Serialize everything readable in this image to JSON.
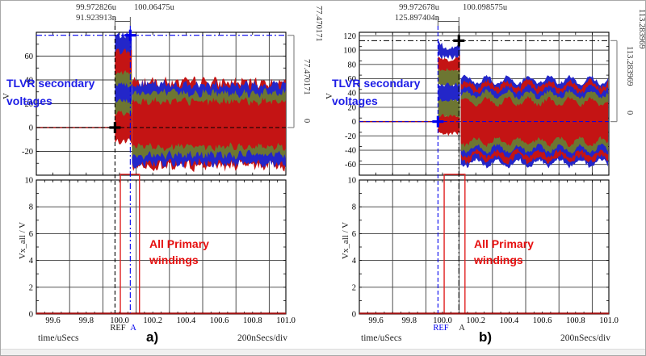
{
  "panels": [
    {
      "caption": "a)",
      "header": {
        "t_ref": "99.972826u",
        "t_a": "100.06475u",
        "dt": "91.923913n"
      },
      "top": {
        "ylabel": "V",
        "note_line1": "TLVR secondary",
        "note_line2": "voltages",
        "bracket_top": "77.470171",
        "bracket_delta": "77.470171",
        "bracket_zero": "0"
      },
      "bottom": {
        "ylabel": "Vx_all / V",
        "note_line1": "All Primary",
        "note_line2": "windings",
        "ref_label": "REF",
        "a_label": "A"
      },
      "footer": {
        "xlabel": "time/uSecs",
        "scale": "200nSecs/div"
      }
    },
    {
      "caption": "b)",
      "header": {
        "t_ref": "99.972678u",
        "t_a": "100.098575u",
        "dt": "125.897404n"
      },
      "top": {
        "ylabel": "V",
        "note_line1": "TLVR secondary",
        "note_line2": "voltages",
        "bracket_top": "113.283969",
        "bracket_delta": "113.283969",
        "bracket_zero": "0"
      },
      "bottom": {
        "ylabel": "Vx_all / V",
        "note_line1": "All Primary",
        "note_line2": "windings",
        "ref_label": "REF",
        "a_label": "A"
      },
      "footer": {
        "xlabel": "time/uSecs",
        "scale": "200nSecs/div"
      }
    }
  ],
  "colors": {
    "trace_red": "#c41414",
    "trace_olive": "#6d7632",
    "trace_blue": "#2326c9",
    "cursor_blue": "#0000ee",
    "cursor_black": "#000000",
    "note_blue": "#1c1ce6",
    "note_red": "#e60f0f",
    "box_red": "#e02222",
    "bracket_gray": "#8a8a8a",
    "grid": "#3c3c3c",
    "axis_trace_red": "#a01010"
  },
  "chart_data": [
    {
      "panel": "a",
      "pos": "top",
      "type": "area",
      "title": "TLVR secondary voltages",
      "xlabel": "time/uSecs",
      "ylabel": "V",
      "xlim": [
        99.5,
        101.0
      ],
      "ylim": [
        -40,
        80
      ],
      "yticks": [
        60,
        40,
        20,
        0,
        -20
      ],
      "xgrid_step": 0.2,
      "x_minor": 0.1,
      "y_minor": 10,
      "grid": true,
      "pre_level": 0,
      "burst": {
        "x0": 99.9728,
        "x1": 100.075,
        "stripes": [
          {
            "c": "blue",
            "y0": 58,
            "y1": 77.5,
            "jit": 3,
            "dip": 0
          },
          {
            "c": "red",
            "y0": 41,
            "y1": 64,
            "jit": 3,
            "dip": 0
          },
          {
            "c": "olive",
            "y0": 32,
            "y1": 46,
            "jit": 2.5,
            "dip": 0
          },
          {
            "c": "blue",
            "y0": 19,
            "y1": 36,
            "jit": 2.5,
            "dip": 0
          },
          {
            "c": "olive",
            "y0": 6,
            "y1": 22,
            "jit": 2.5,
            "dip": 0
          },
          {
            "c": "red",
            "y0": -12,
            "y1": 12,
            "jit": 3,
            "dip": 0
          }
        ]
      },
      "steady": {
        "x0": 100.075,
        "x1": 101.0,
        "center": 3,
        "ripple_period": 0.06,
        "ripple_amp": 1.5,
        "bands": [
          {
            "c": "red",
            "hw": 35,
            "jit": 4
          },
          {
            "c": "blue",
            "hw": 33,
            "jit": 3.5
          },
          {
            "c": "olive",
            "hw": 26,
            "jit": 3
          },
          {
            "c": "red",
            "hw": 19,
            "jit": 2.5
          }
        ]
      },
      "cursors": [
        {
          "name": "REF",
          "x": 99.972826,
          "y": 0,
          "color": "#000000",
          "dash": "5,3"
        },
        {
          "name": "A",
          "x": 100.06475,
          "y": 77.470171,
          "color": "#0000ee",
          "dash": "7,3,2,3"
        }
      ],
      "bracket": {
        "y_top": 77.470171,
        "y_bot": 0
      }
    },
    {
      "panel": "a",
      "pos": "bottom",
      "type": "line",
      "xlabel": "time/uSecs",
      "ylabel": "Vx_all / V",
      "xlim": [
        99.5,
        101.0
      ],
      "ylim": [
        0,
        10
      ],
      "yticks": [
        10,
        8,
        6,
        4,
        2,
        0
      ],
      "xticks": [
        "99.6",
        "99.8",
        "100.0",
        "100.2",
        "100.4",
        "100.6",
        "100.8",
        "101.0"
      ],
      "xgrid_step": 0.2,
      "x_minor": 0.05,
      "y_minor": 1,
      "trace_level": 0,
      "box": {
        "x0": 100.005,
        "x1": 100.12
      }
    },
    {
      "panel": "b",
      "pos": "top",
      "type": "area",
      "title": "TLVR secondary voltages",
      "xlabel": "time/uSecs",
      "ylabel": "V",
      "xlim": [
        99.5,
        101.0
      ],
      "ylim": [
        -75,
        125
      ],
      "yticks": [
        120,
        100,
        80,
        60,
        40,
        20,
        0,
        -20,
        -40,
        -60
      ],
      "xgrid_step": 0.2,
      "x_minor": 0.1,
      "y_minor": 20,
      "grid": true,
      "pre_level": 0,
      "burst": {
        "x0": 99.973,
        "x1": 100.11,
        "stripes": [
          {
            "c": "blue",
            "y0": 90,
            "y1": 113.5,
            "jit": 4,
            "dip": 12
          },
          {
            "c": "red",
            "y0": 70,
            "y1": 92,
            "jit": 3,
            "dip": 6
          },
          {
            "c": "olive",
            "y0": 50,
            "y1": 72,
            "jit": 3,
            "dip": 0
          },
          {
            "c": "blue",
            "y0": 28,
            "y1": 52,
            "jit": 3,
            "dip": 0
          },
          {
            "c": "olive",
            "y0": 5,
            "y1": 30,
            "jit": 3,
            "dip": 0
          },
          {
            "c": "red",
            "y0": -17,
            "y1": 8,
            "jit": 3,
            "dip": 0
          }
        ]
      },
      "steady": {
        "x0": 100.11,
        "x1": 101.0,
        "center": 0,
        "ripple_period": 0.125,
        "ripple_amp": 5,
        "bands": [
          {
            "c": "blue",
            "hw": 58,
            "jit": 3
          },
          {
            "c": "red",
            "hw": 52,
            "jit": 4
          },
          {
            "c": "blue",
            "hw": 45,
            "jit": 3
          },
          {
            "c": "olive",
            "hw": 38,
            "jit": 3
          },
          {
            "c": "red",
            "hw": 28,
            "jit": 3
          }
        ]
      },
      "cursors": [
        {
          "name": "REF",
          "x": 99.972678,
          "y": 0,
          "color": "#0000ee",
          "dash": "5,3"
        },
        {
          "name": "A",
          "x": 100.098575,
          "y": 113.283969,
          "color": "#000000",
          "dash": "7,3,2,3"
        }
      ],
      "bracket": {
        "y_top": 113.283969,
        "y_bot": 0
      }
    },
    {
      "panel": "b",
      "pos": "bottom",
      "type": "line",
      "xlabel": "time/uSecs",
      "ylabel": "Vx_all / V",
      "xlim": [
        99.5,
        101.0
      ],
      "ylim": [
        0,
        10
      ],
      "yticks": [
        10,
        8,
        6,
        4,
        2,
        0
      ],
      "xticks": [
        "99.6",
        "99.8",
        "100.0",
        "100.2",
        "100.4",
        "100.6",
        "100.8",
        "101.0"
      ],
      "xgrid_step": 0.2,
      "x_minor": 0.05,
      "y_minor": 1,
      "trace_level": 0,
      "box": {
        "x0": 100.01,
        "x1": 100.135
      }
    }
  ]
}
